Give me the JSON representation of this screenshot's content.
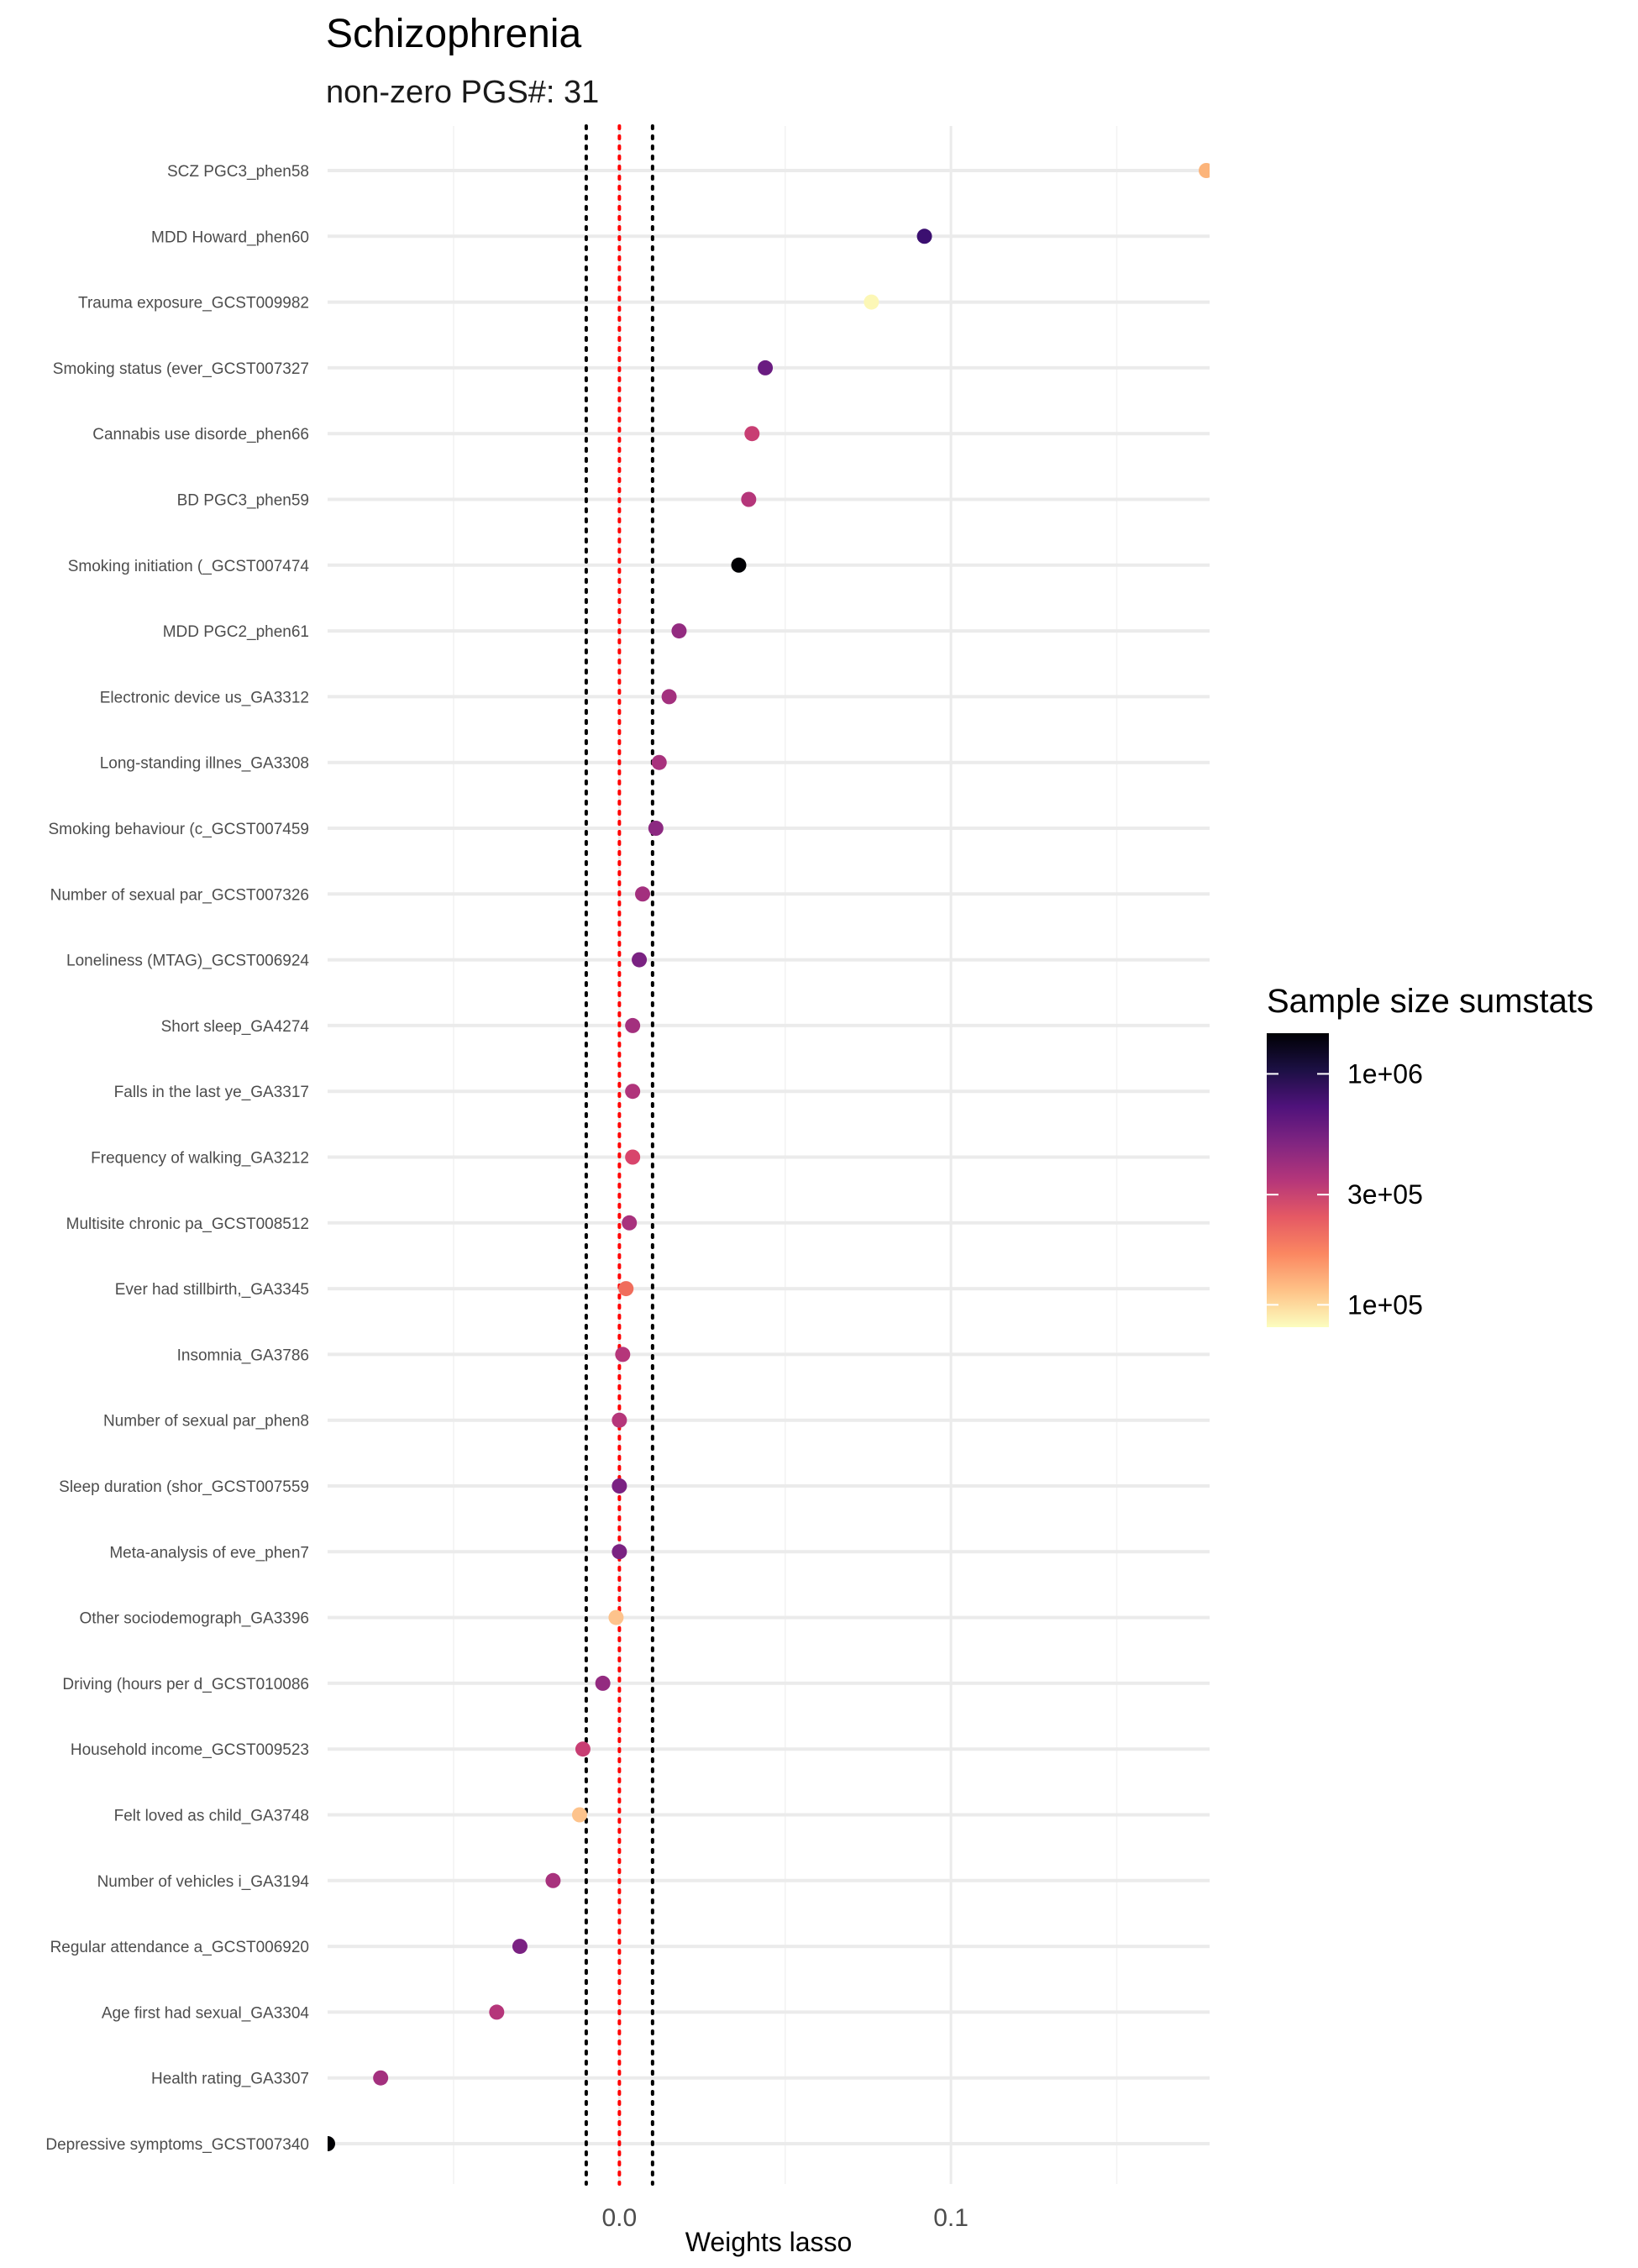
{
  "chart_data": {
    "type": "scatter",
    "title": "Schizophrenia",
    "subtitle": "non-zero PGS#: 31",
    "xlabel": "Weights lasso",
    "ylabel": "",
    "x_ticks": [
      "0.0",
      "0.1"
    ],
    "x_tick_values": [
      0.0,
      0.1
    ],
    "xlim": [
      -0.088,
      0.178
    ],
    "reference_lines": [
      {
        "x": 0.0,
        "color": "#ff0000",
        "style": "dotted"
      },
      {
        "x": -0.01,
        "color": "#000000",
        "style": "dotted"
      },
      {
        "x": 0.01,
        "color": "#000000",
        "style": "dotted"
      }
    ],
    "grid": true,
    "legend": {
      "title": "Sample size sumstats",
      "placement": "right",
      "scale": "log",
      "colormap": "magma",
      "ticks": [
        {
          "label": "1e+06",
          "value": 1000000
        },
        {
          "label": "3e+05",
          "value": 300000
        },
        {
          "label": "1e+05",
          "value": 100000
        }
      ],
      "range": [
        80000,
        1500000
      ]
    },
    "categories": [
      "SCZ PGC3_phen58",
      "MDD Howard_phen60",
      "Trauma exposure_GCST009982",
      "Smoking status (ever_GCST007327",
      "Cannabis use disorde_phen66",
      "BD PGC3_phen59",
      "Smoking initiation (_GCST007474",
      "MDD PGC2_phen61",
      "Electronic device us_GA3312",
      "Long-standing illnes_GA3308",
      "Smoking behaviour (c_GCST007459",
      "Number of sexual par_GCST007326",
      "Loneliness (MTAG)_GCST006924",
      "Short sleep_GA4274",
      "Falls in the last ye_GA3317",
      "Frequency of walking_GA3212",
      "Multisite chronic pa_GCST008512",
      "Ever had stillbirth,_GA3345",
      "Insomnia_GA3786",
      "Number of sexual par_phen8",
      "Sleep duration (shor_GCST007559",
      "Meta-analysis of eve_phen7",
      "Other sociodemograph_GA3396",
      "Driving (hours per d_GCST010086",
      "Household income_GCST009523",
      "Felt loved as child_GA3748",
      "Number of vehicles i_GA3194",
      "Regular attendance a_GCST006920",
      "Age first had sexual_GA3304",
      "Health rating_GA3307",
      "Depressive symptoms_GCST007340"
    ],
    "points": [
      {
        "x": 0.177,
        "color": "#fcb47a"
      },
      {
        "x": 0.092,
        "color": "#3b0f70"
      },
      {
        "x": 0.076,
        "color": "#fcf7b6"
      },
      {
        "x": 0.044,
        "color": "#6a1c81"
      },
      {
        "x": 0.04,
        "color": "#c83e73"
      },
      {
        "x": 0.039,
        "color": "#b5367a"
      },
      {
        "x": 0.036,
        "color": "#000004"
      },
      {
        "x": 0.018,
        "color": "#932b80"
      },
      {
        "x": 0.015,
        "color": "#a3307e"
      },
      {
        "x": 0.012,
        "color": "#a8327d"
      },
      {
        "x": 0.011,
        "color": "#8c2981"
      },
      {
        "x": 0.007,
        "color": "#a3307e"
      },
      {
        "x": 0.006,
        "color": "#7a2282"
      },
      {
        "x": 0.004,
        "color": "#a3307e"
      },
      {
        "x": 0.004,
        "color": "#b0347b"
      },
      {
        "x": 0.004,
        "color": "#d8456c"
      },
      {
        "x": 0.003,
        "color": "#a8327d"
      },
      {
        "x": 0.002,
        "color": "#f06d5c"
      },
      {
        "x": 0.001,
        "color": "#b5367a"
      },
      {
        "x": 0.0,
        "color": "#b5367a"
      },
      {
        "x": 0.0,
        "color": "#7a2282"
      },
      {
        "x": 0.0,
        "color": "#7a2282"
      },
      {
        "x": -0.001,
        "color": "#fdc38c"
      },
      {
        "x": -0.005,
        "color": "#932b80"
      },
      {
        "x": -0.011,
        "color": "#c83e73"
      },
      {
        "x": -0.012,
        "color": "#fdc38c"
      },
      {
        "x": -0.02,
        "color": "#a8327d"
      },
      {
        "x": -0.03,
        "color": "#7a2282"
      },
      {
        "x": -0.037,
        "color": "#b5367a"
      },
      {
        "x": -0.072,
        "color": "#a3307e"
      },
      {
        "x": -0.088,
        "color": "#000004"
      }
    ]
  }
}
